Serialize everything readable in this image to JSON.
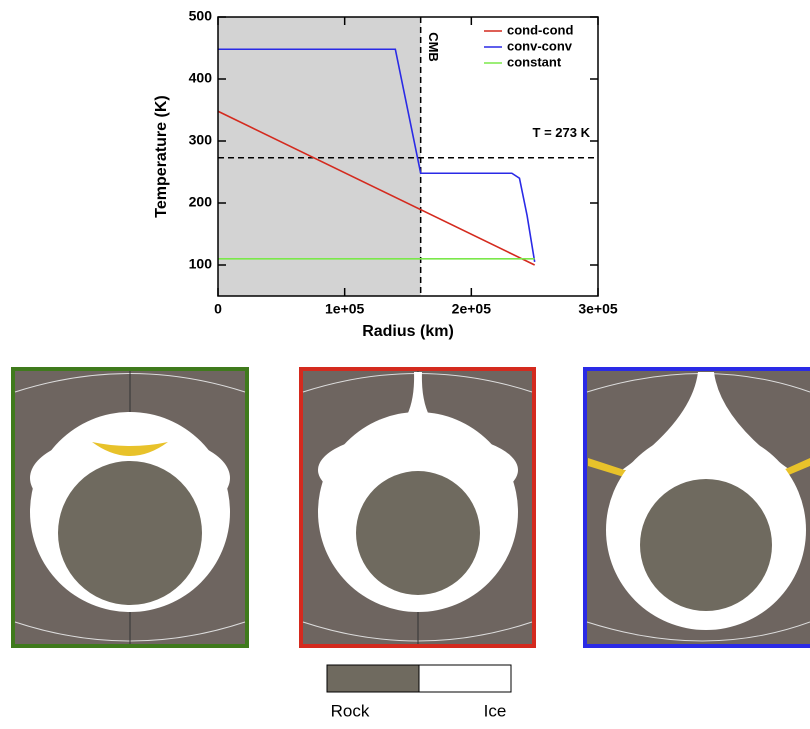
{
  "chart_data": {
    "type": "line",
    "xlabel": "Radius (km)",
    "ylabel": "Temperature (K)",
    "xlim": [
      0,
      300000
    ],
    "ylim": [
      50,
      500
    ],
    "xticks": [
      0,
      {
        "value": 100000,
        "label": "1e+05"
      },
      {
        "value": 200000,
        "label": "2e+05"
      },
      {
        "value": 300000,
        "label": "3e+05"
      }
    ],
    "yticks": [
      100,
      200,
      300,
      400,
      500
    ],
    "legend": "top-right",
    "series": [
      {
        "name": "cond-cond",
        "color": "#d42a1e",
        "x": [
          0,
          250000
        ],
        "values": [
          348,
          100
        ]
      },
      {
        "name": "conv-conv",
        "color": "#2a2ae6",
        "x": [
          0,
          140000,
          160000,
          232000,
          238000,
          244000,
          250000
        ],
        "values": [
          448,
          448,
          248,
          248,
          240,
          180,
          105
        ]
      },
      {
        "name": "constant",
        "color": "#7be84a",
        "x": [
          0,
          250000
        ],
        "values": [
          110,
          110
        ]
      }
    ],
    "shaded": {
      "from": 0,
      "to": 160000,
      "color": "#d3d3d3"
    },
    "annotations": [
      {
        "text": "CMB",
        "x": 160000
      },
      {
        "text": "T = 273 K",
        "y": 273
      }
    ],
    "colorbar": {
      "labels": [
        "Rock",
        "Ice"
      ],
      "colors": [
        "#6f6a5f",
        "#ffffff"
      ]
    }
  }
}
